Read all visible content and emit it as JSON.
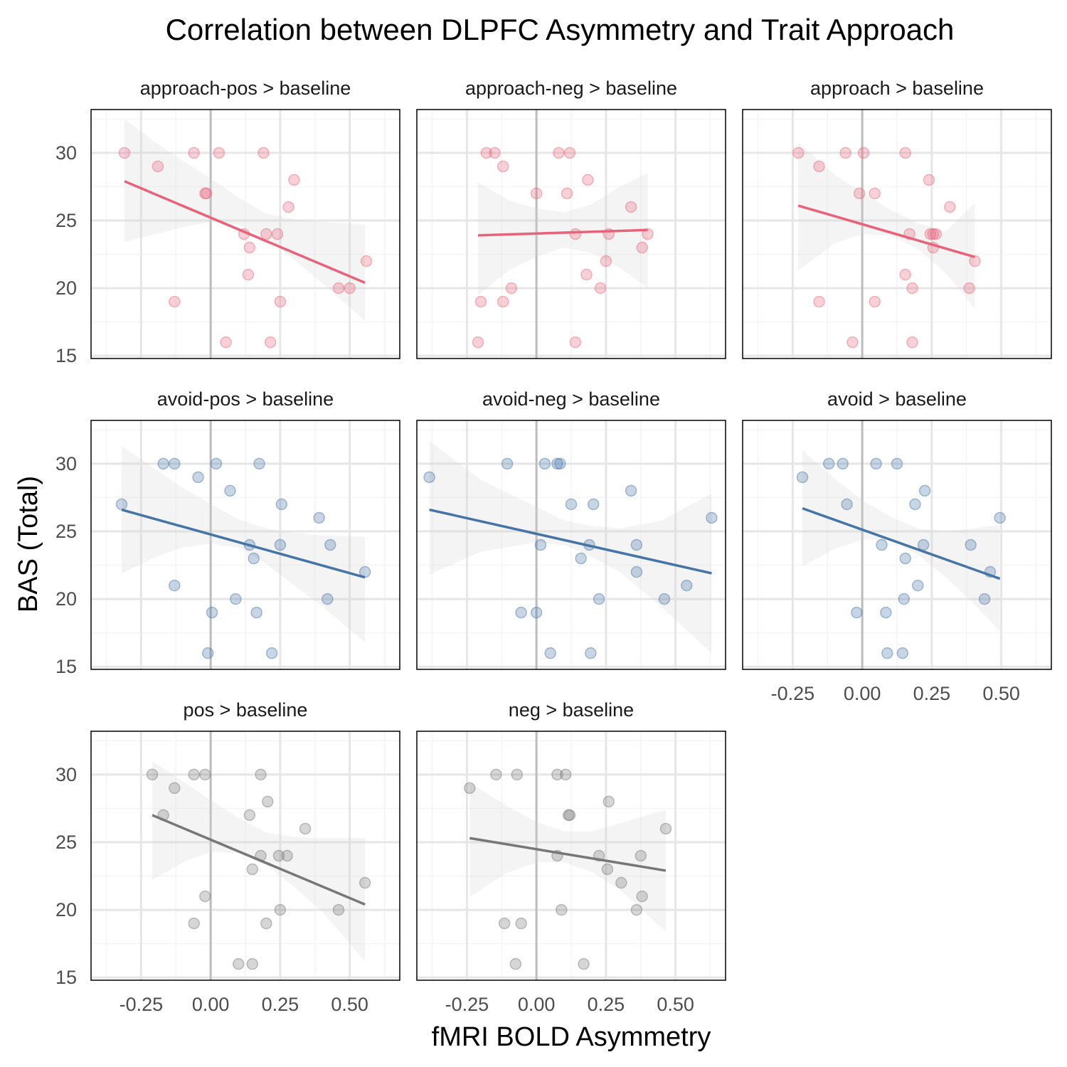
{
  "chart_data": {
    "type": "scatter",
    "title": "Correlation between DLPFC Asymmetry and Trait Approach",
    "xlabel": "fMRI BOLD Asymmetry",
    "ylabel": "BAS (Total)",
    "xlim": [
      -0.43,
      0.68
    ],
    "ylim": [
      14.8,
      33.2
    ],
    "x_ticks": [
      -0.25,
      0.0,
      0.25,
      0.5
    ],
    "x_tick_labels": [
      "-0.25",
      "0.00",
      "0.25",
      "0.50"
    ],
    "y_ticks": [
      15,
      20,
      25,
      30
    ],
    "y_tick_labels": [
      "15",
      "20",
      "25",
      "30"
    ],
    "grid": true,
    "reference_line_x": 0,
    "colors": {
      "approach": "#e8637a",
      "avoid": "#4574a6",
      "overall": "#777777"
    },
    "panels": [
      {
        "name": "approach-pos > baseline",
        "group": "approach",
        "points": [
          [
            -0.31,
            30
          ],
          [
            -0.19,
            29
          ],
          [
            -0.13,
            19
          ],
          [
            -0.06,
            30
          ],
          [
            -0.02,
            27
          ],
          [
            -0.015,
            27
          ],
          [
            0.03,
            30
          ],
          [
            0.12,
            24
          ],
          [
            0.135,
            21
          ],
          [
            0.14,
            23
          ],
          [
            0.19,
            30
          ],
          [
            0.2,
            24
          ],
          [
            0.24,
            24
          ],
          [
            0.25,
            19
          ],
          [
            0.28,
            26
          ],
          [
            0.3,
            28
          ],
          [
            0.055,
            16
          ],
          [
            0.215,
            16
          ],
          [
            0.46,
            20
          ],
          [
            0.5,
            20
          ],
          [
            0.56,
            22
          ]
        ],
        "fit": [
          [
            -0.31,
            27.9
          ],
          [
            0.555,
            20.4
          ]
        ],
        "band": [
          [
            -0.31,
            23.4,
            32.5
          ],
          [
            -0.2,
            24.0,
            30.8
          ],
          [
            -0.1,
            24.5,
            29.4
          ],
          [
            0.0,
            24.9,
            28.1
          ],
          [
            0.1,
            24.7,
            26.7
          ],
          [
            0.2,
            23.7,
            25.5
          ],
          [
            0.3,
            22.1,
            25.1
          ],
          [
            0.4,
            20.4,
            24.9
          ],
          [
            0.555,
            17.6,
            24.7
          ]
        ]
      },
      {
        "name": "approach-neg > baseline",
        "group": "approach",
        "points": [
          [
            -0.18,
            30
          ],
          [
            -0.15,
            30
          ],
          [
            -0.12,
            29
          ],
          [
            -0.2,
            19
          ],
          [
            -0.21,
            16
          ],
          [
            -0.12,
            19
          ],
          [
            -0.09,
            20
          ],
          [
            0.0,
            27
          ],
          [
            0.08,
            30
          ],
          [
            0.11,
            27
          ],
          [
            0.12,
            30
          ],
          [
            0.14,
            24
          ],
          [
            0.14,
            16
          ],
          [
            0.18,
            21
          ],
          [
            0.185,
            28
          ],
          [
            0.23,
            20
          ],
          [
            0.25,
            22
          ],
          [
            0.26,
            24
          ],
          [
            0.34,
            26
          ],
          [
            0.38,
            23
          ],
          [
            0.4,
            24
          ]
        ],
        "fit": [
          [
            -0.21,
            23.9
          ],
          [
            0.4,
            24.3
          ]
        ],
        "band": [
          [
            -0.21,
            19.5,
            27.8
          ],
          [
            -0.1,
            21.3,
            26.5
          ],
          [
            0.0,
            22.3,
            25.9
          ],
          [
            0.1,
            23.0,
            25.6
          ],
          [
            0.2,
            22.6,
            26.2
          ],
          [
            0.3,
            21.5,
            27.5
          ],
          [
            0.4,
            20.0,
            28.5
          ]
        ]
      },
      {
        "name": "approach > baseline",
        "group": "approach",
        "points": [
          [
            -0.23,
            30
          ],
          [
            -0.155,
            29
          ],
          [
            -0.155,
            19
          ],
          [
            -0.06,
            30
          ],
          [
            -0.035,
            16
          ],
          [
            0.005,
            30
          ],
          [
            -0.01,
            27
          ],
          [
            0.045,
            27
          ],
          [
            0.045,
            19
          ],
          [
            0.155,
            30
          ],
          [
            0.155,
            21
          ],
          [
            0.17,
            24
          ],
          [
            0.18,
            20
          ],
          [
            0.18,
            16
          ],
          [
            0.24,
            28
          ],
          [
            0.245,
            24
          ],
          [
            0.255,
            24
          ],
          [
            0.255,
            23
          ],
          [
            0.265,
            24
          ],
          [
            0.315,
            26
          ],
          [
            0.385,
            20
          ],
          [
            0.405,
            22
          ]
        ],
        "fit": [
          [
            -0.23,
            26.1
          ],
          [
            0.405,
            22.3
          ]
        ],
        "band": [
          [
            -0.23,
            21.3,
            30.8
          ],
          [
            -0.1,
            23.3,
            28.4
          ],
          [
            0.0,
            24.0,
            27.1
          ],
          [
            0.1,
            23.9,
            25.8
          ],
          [
            0.2,
            22.9,
            24.8
          ],
          [
            0.3,
            21.1,
            24.2
          ],
          [
            0.405,
            18.5,
            26.3
          ]
        ]
      },
      {
        "name": "avoid-pos > baseline",
        "group": "avoid",
        "points": [
          [
            -0.32,
            27
          ],
          [
            -0.17,
            30
          ],
          [
            -0.13,
            30
          ],
          [
            -0.13,
            21
          ],
          [
            -0.045,
            29
          ],
          [
            0.02,
            30
          ],
          [
            0.07,
            28
          ],
          [
            0.09,
            20
          ],
          [
            0.005,
            19
          ],
          [
            -0.01,
            16
          ],
          [
            0.14,
            24
          ],
          [
            0.155,
            23
          ],
          [
            0.175,
            30
          ],
          [
            0.165,
            19
          ],
          [
            0.22,
            16
          ],
          [
            0.255,
            27
          ],
          [
            0.25,
            24
          ],
          [
            0.39,
            26
          ],
          [
            0.43,
            24
          ],
          [
            0.42,
            20
          ],
          [
            0.555,
            22
          ]
        ],
        "fit": [
          [
            -0.32,
            26.6
          ],
          [
            0.555,
            21.6
          ]
        ],
        "band": [
          [
            -0.32,
            21.9,
            31.3
          ],
          [
            -0.2,
            23.1,
            29.6
          ],
          [
            -0.1,
            23.8,
            28.2
          ],
          [
            0.0,
            24.1,
            27.0
          ],
          [
            0.1,
            23.8,
            25.9
          ],
          [
            0.2,
            22.6,
            25.2
          ],
          [
            0.3,
            21.0,
            24.9
          ],
          [
            0.4,
            19.5,
            24.7
          ],
          [
            0.555,
            16.8,
            24.6
          ]
        ]
      },
      {
        "name": "avoid-neg > baseline",
        "group": "avoid",
        "points": [
          [
            -0.385,
            29
          ],
          [
            -0.105,
            30
          ],
          [
            -0.055,
            19
          ],
          [
            0.015,
            24
          ],
          [
            0.0,
            19
          ],
          [
            0.03,
            30
          ],
          [
            0.05,
            16
          ],
          [
            0.075,
            30
          ],
          [
            0.085,
            30
          ],
          [
            0.125,
            27
          ],
          [
            0.16,
            23
          ],
          [
            0.19,
            24
          ],
          [
            0.195,
            16
          ],
          [
            0.205,
            27
          ],
          [
            0.225,
            20
          ],
          [
            0.34,
            28
          ],
          [
            0.36,
            22
          ],
          [
            0.36,
            24
          ],
          [
            0.46,
            20
          ],
          [
            0.54,
            21
          ],
          [
            0.63,
            26
          ]
        ],
        "fit": [
          [
            -0.385,
            26.6
          ],
          [
            0.63,
            21.9
          ]
        ],
        "band": [
          [
            -0.385,
            21.8,
            31.7
          ],
          [
            -0.2,
            23.5,
            28.8
          ],
          [
            0.0,
            24.2,
            26.8
          ],
          [
            0.1,
            24.0,
            25.8
          ],
          [
            0.2,
            23.1,
            25.4
          ],
          [
            0.3,
            22.0,
            25.2
          ],
          [
            0.45,
            19.4,
            25.8
          ],
          [
            0.63,
            16.0,
            27.8
          ]
        ]
      },
      {
        "name": "avoid > baseline",
        "group": "avoid",
        "points": [
          [
            -0.215,
            29
          ],
          [
            -0.12,
            30
          ],
          [
            -0.07,
            30
          ],
          [
            -0.055,
            27
          ],
          [
            -0.02,
            19
          ],
          [
            0.05,
            30
          ],
          [
            0.07,
            24
          ],
          [
            0.085,
            19
          ],
          [
            0.09,
            16
          ],
          [
            0.125,
            30
          ],
          [
            0.145,
            16
          ],
          [
            0.15,
            20
          ],
          [
            0.155,
            23
          ],
          [
            0.19,
            27
          ],
          [
            0.2,
            21
          ],
          [
            0.22,
            24
          ],
          [
            0.225,
            28
          ],
          [
            0.39,
            24
          ],
          [
            0.44,
            20
          ],
          [
            0.46,
            22
          ],
          [
            0.495,
            26
          ]
        ],
        "fit": [
          [
            -0.215,
            26.7
          ],
          [
            0.495,
            21.5
          ]
        ],
        "band": [
          [
            -0.215,
            22.4,
            31.0
          ],
          [
            -0.1,
            23.7,
            28.9
          ],
          [
            0.0,
            24.4,
            27.3
          ],
          [
            0.1,
            24.3,
            26.1
          ],
          [
            0.2,
            23.3,
            25.2
          ],
          [
            0.3,
            21.6,
            25.0
          ],
          [
            0.4,
            19.7,
            25.2
          ],
          [
            0.495,
            17.6,
            25.5
          ]
        ]
      },
      {
        "name": "pos > baseline",
        "group": "overall",
        "points": [
          [
            -0.21,
            30
          ],
          [
            -0.13,
            29
          ],
          [
            -0.17,
            27
          ],
          [
            -0.06,
            30
          ],
          [
            -0.02,
            30
          ],
          [
            -0.02,
            21
          ],
          [
            -0.06,
            19
          ],
          [
            0.1,
            16
          ],
          [
            0.15,
            16
          ],
          [
            0.14,
            27
          ],
          [
            0.15,
            23
          ],
          [
            0.18,
            24
          ],
          [
            0.18,
            30
          ],
          [
            0.205,
            28
          ],
          [
            0.2,
            19
          ],
          [
            0.245,
            24
          ],
          [
            0.25,
            20
          ],
          [
            0.275,
            24
          ],
          [
            0.34,
            26
          ],
          [
            0.46,
            20
          ],
          [
            0.555,
            22
          ]
        ],
        "fit": [
          [
            -0.21,
            27.0
          ],
          [
            0.555,
            20.4
          ]
        ],
        "band": [
          [
            -0.21,
            22.2,
            31.0
          ],
          [
            -0.1,
            23.5,
            29.5
          ],
          [
            0.0,
            24.3,
            28.1
          ],
          [
            0.1,
            24.2,
            26.8
          ],
          [
            0.2,
            23.3,
            25.7
          ],
          [
            0.3,
            21.7,
            25.4
          ],
          [
            0.4,
            19.9,
            25.3
          ],
          [
            0.555,
            16.2,
            25.3
          ]
        ]
      },
      {
        "name": "neg > baseline",
        "group": "overall",
        "points": [
          [
            -0.24,
            29
          ],
          [
            -0.145,
            30
          ],
          [
            -0.07,
            30
          ],
          [
            -0.115,
            19
          ],
          [
            -0.055,
            19
          ],
          [
            -0.075,
            16
          ],
          [
            0.075,
            30
          ],
          [
            0.105,
            30
          ],
          [
            0.075,
            24
          ],
          [
            0.09,
            20
          ],
          [
            0.115,
            27
          ],
          [
            0.12,
            27
          ],
          [
            0.17,
            16
          ],
          [
            0.225,
            24
          ],
          [
            0.255,
            23
          ],
          [
            0.26,
            28
          ],
          [
            0.305,
            22
          ],
          [
            0.36,
            20
          ],
          [
            0.375,
            24
          ],
          [
            0.38,
            21
          ],
          [
            0.465,
            26
          ]
        ],
        "fit": [
          [
            -0.24,
            25.3
          ],
          [
            0.465,
            22.9
          ]
        ],
        "band": [
          [
            -0.24,
            21.0,
            29.4
          ],
          [
            -0.1,
            22.8,
            27.6
          ],
          [
            0.0,
            23.5,
            26.5
          ],
          [
            0.1,
            23.5,
            25.8
          ],
          [
            0.2,
            22.8,
            25.8
          ],
          [
            0.3,
            21.5,
            26.4
          ],
          [
            0.465,
            18.4,
            27.4
          ]
        ]
      }
    ]
  }
}
